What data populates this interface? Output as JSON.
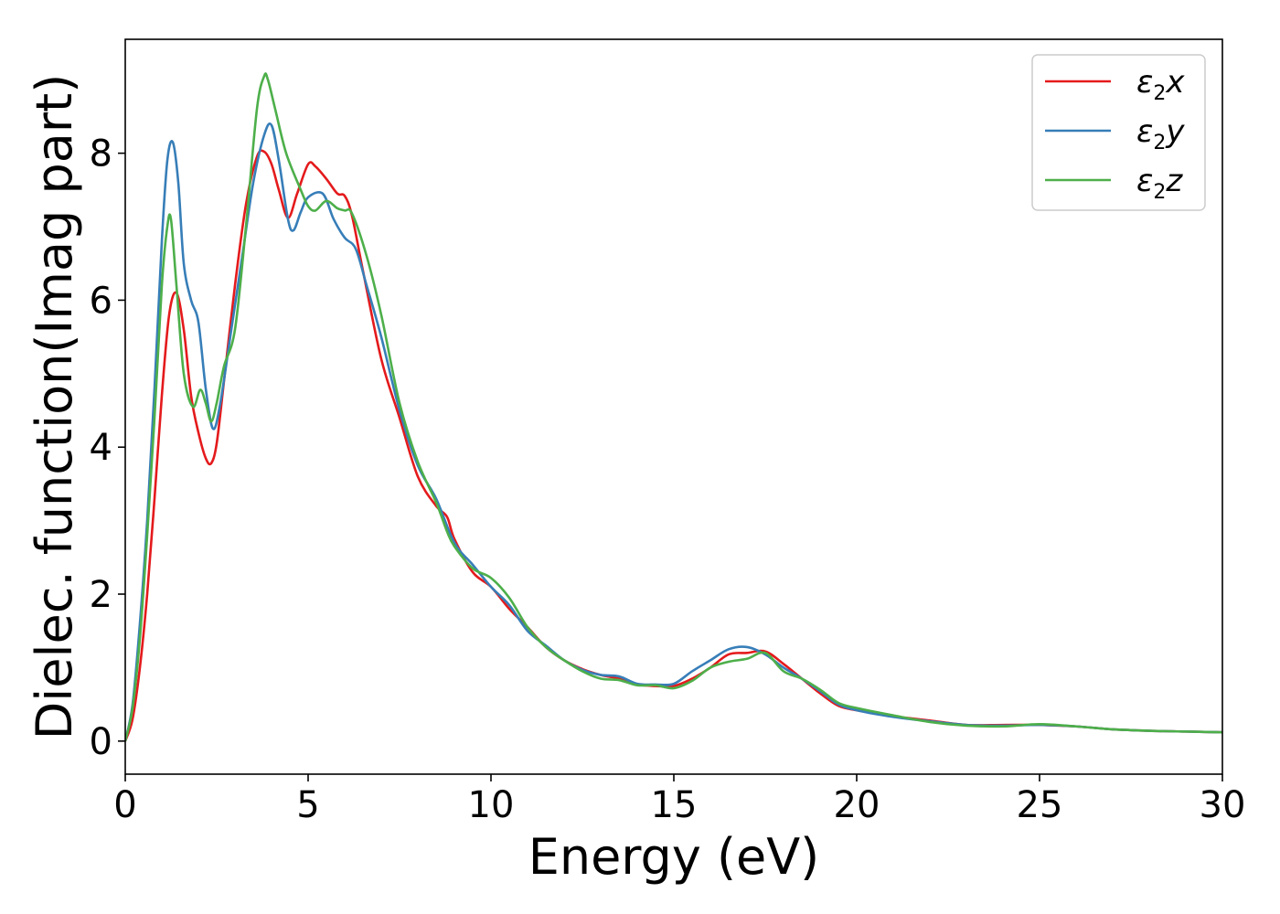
{
  "chart_data": {
    "type": "line",
    "xlabel": "Energy (eV)",
    "ylabel": "Dielec. function(Imag part)",
    "xlim": [
      0,
      30
    ],
    "ylim": [
      -0.45,
      9.55
    ],
    "xticks": [
      0,
      5,
      10,
      15,
      20,
      25,
      30
    ],
    "yticks": [
      0,
      2,
      4,
      6,
      8
    ],
    "grid": false,
    "legend_position": "top-right",
    "series": [
      {
        "name": "ε2x",
        "legend": {
          "symbol": "ε",
          "sub": "2",
          "suffix": "x"
        },
        "color": "#e41a1c",
        "x": [
          0,
          0.2,
          0.4,
          0.6,
          0.8,
          1.0,
          1.2,
          1.4,
          1.6,
          1.8,
          2.0,
          2.2,
          2.35,
          2.5,
          2.7,
          3.0,
          3.3,
          3.6,
          3.8,
          4.0,
          4.2,
          4.45,
          4.7,
          5.0,
          5.2,
          5.5,
          5.8,
          6.0,
          6.2,
          6.5,
          7.0,
          7.5,
          8.0,
          8.5,
          8.8,
          9.0,
          9.5,
          10.0,
          10.5,
          11.0,
          11.5,
          12.0,
          12.5,
          13.0,
          13.5,
          14.0,
          14.5,
          15.0,
          15.5,
          16.0,
          16.5,
          17.0,
          17.5,
          18.0,
          18.5,
          19.0,
          19.5,
          20.0,
          21.0,
          22.0,
          23.0,
          24.0,
          25.0,
          26.0,
          27.0,
          28.0,
          29.0,
          30.0
        ],
        "values": [
          0,
          0.3,
          1.0,
          2.0,
          3.3,
          4.7,
          5.8,
          6.1,
          5.6,
          4.7,
          4.2,
          3.85,
          3.78,
          4.05,
          4.9,
          6.2,
          7.3,
          7.95,
          8.02,
          7.85,
          7.5,
          7.12,
          7.45,
          7.85,
          7.82,
          7.65,
          7.45,
          7.42,
          7.15,
          6.4,
          5.2,
          4.4,
          3.6,
          3.2,
          3.05,
          2.75,
          2.3,
          2.1,
          1.8,
          1.55,
          1.28,
          1.1,
          0.98,
          0.9,
          0.85,
          0.77,
          0.75,
          0.75,
          0.85,
          1.0,
          1.18,
          1.2,
          1.22,
          1.05,
          0.85,
          0.65,
          0.48,
          0.42,
          0.34,
          0.28,
          0.22,
          0.22,
          0.22,
          0.2,
          0.16,
          0.14,
          0.13,
          0.12
        ]
      },
      {
        "name": "ε2y",
        "legend": {
          "symbol": "ε",
          "sub": "2",
          "suffix": "y"
        },
        "color": "#377eb8",
        "x": [
          0,
          0.2,
          0.4,
          0.6,
          0.8,
          1.0,
          1.15,
          1.3,
          1.45,
          1.6,
          1.8,
          2.0,
          2.2,
          2.4,
          2.6,
          2.9,
          3.2,
          3.5,
          3.8,
          4.0,
          4.2,
          4.45,
          4.6,
          4.8,
          5.0,
          5.4,
          5.7,
          6.0,
          6.3,
          6.6,
          7.0,
          7.5,
          8.0,
          8.5,
          9.0,
          9.5,
          10.0,
          10.5,
          11.0,
          11.5,
          12.0,
          12.5,
          13.0,
          13.5,
          14.0,
          14.5,
          15.0,
          15.5,
          16.0,
          16.5,
          17.0,
          17.5,
          18.0,
          18.5,
          19.0,
          19.5,
          20.0,
          21.0,
          22.0,
          23.0,
          24.0,
          25.0,
          26.0,
          27.0,
          28.0,
          29.0,
          30.0
        ],
        "values": [
          0,
          0.5,
          1.6,
          3.0,
          4.8,
          6.8,
          7.9,
          8.15,
          7.6,
          6.5,
          6.0,
          5.7,
          4.8,
          4.25,
          4.6,
          5.6,
          6.6,
          7.6,
          8.25,
          8.38,
          7.9,
          7.1,
          6.95,
          7.2,
          7.4,
          7.45,
          7.1,
          6.85,
          6.7,
          6.2,
          5.5,
          4.5,
          3.75,
          3.3,
          2.7,
          2.4,
          2.1,
          1.85,
          1.5,
          1.3,
          1.1,
          0.97,
          0.9,
          0.88,
          0.78,
          0.77,
          0.78,
          0.95,
          1.1,
          1.25,
          1.28,
          1.18,
          1.0,
          0.85,
          0.68,
          0.5,
          0.42,
          0.33,
          0.27,
          0.22,
          0.21,
          0.22,
          0.2,
          0.16,
          0.14,
          0.13,
          0.12
        ]
      },
      {
        "name": "ε2z",
        "legend": {
          "symbol": "ε",
          "sub": "2",
          "suffix": "z"
        },
        "color": "#4daf4a",
        "x": [
          0,
          0.2,
          0.4,
          0.6,
          0.8,
          1.0,
          1.15,
          1.25,
          1.4,
          1.6,
          1.85,
          2.05,
          2.2,
          2.35,
          2.5,
          2.7,
          3.0,
          3.3,
          3.6,
          3.8,
          3.9,
          4.1,
          4.4,
          4.8,
          5.0,
          5.2,
          5.5,
          5.8,
          6.0,
          6.2,
          6.6,
          7.0,
          7.5,
          8.0,
          8.5,
          8.8,
          9.0,
          9.5,
          10.0,
          10.5,
          11.0,
          11.5,
          12.0,
          12.5,
          13.0,
          13.5,
          14.0,
          14.5,
          15.0,
          15.5,
          16.0,
          16.5,
          17.0,
          17.5,
          18.0,
          18.5,
          19.0,
          19.5,
          20.0,
          21.0,
          22.0,
          23.0,
          24.0,
          25.0,
          26.0,
          27.0,
          28.0,
          29.0,
          30.0
        ],
        "values": [
          0,
          0.45,
          1.4,
          2.8,
          4.4,
          6.2,
          7.0,
          7.1,
          6.2,
          5.0,
          4.55,
          4.78,
          4.6,
          4.35,
          4.6,
          5.1,
          5.6,
          7.0,
          8.6,
          9.05,
          9.0,
          8.6,
          8.0,
          7.5,
          7.28,
          7.22,
          7.35,
          7.25,
          7.22,
          7.18,
          6.6,
          5.8,
          4.6,
          3.8,
          3.25,
          2.85,
          2.65,
          2.35,
          2.22,
          1.95,
          1.55,
          1.28,
          1.1,
          0.95,
          0.85,
          0.83,
          0.76,
          0.76,
          0.72,
          0.82,
          1.0,
          1.08,
          1.12,
          1.2,
          0.95,
          0.85,
          0.7,
          0.52,
          0.45,
          0.35,
          0.26,
          0.21,
          0.2,
          0.23,
          0.2,
          0.16,
          0.14,
          0.13,
          0.12
        ]
      }
    ]
  }
}
